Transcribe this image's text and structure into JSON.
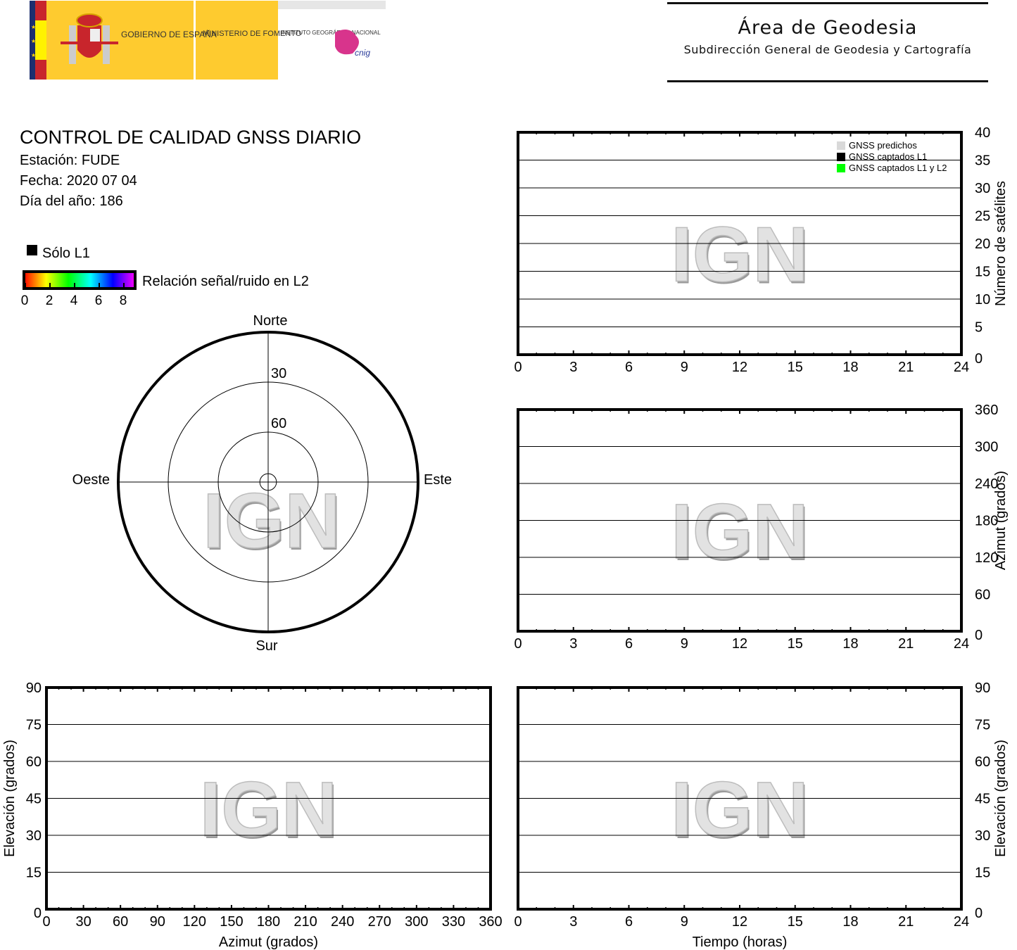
{
  "logos": {
    "gobierno": "GOBIERNO DE ESPAÑA",
    "ministerio": "MINISTERIO DE FOMENTO",
    "instituto": "INSTITUTO GEOGRÁFICO NACIONAL",
    "cnig": "cnig"
  },
  "header": {
    "title": "Área de Geodesia",
    "subtitle": "Subdirección General de Geodesia y Cartografía"
  },
  "report": {
    "title": "CONTROL DE CALIDAD GNSS DIARIO",
    "station": "Estación: FUDE",
    "date": "Fecha: 2020 07 04",
    "doy": "Día del año: 186"
  },
  "legend": {
    "l1_only": "Sólo L1",
    "l1_color": "#000000",
    "snr_label": "Relación señal/ruido en L2",
    "snr_ticks": [
      "0",
      "2",
      "4",
      "6",
      "8"
    ],
    "snr_colors": [
      "#ff0000",
      "#ffff00",
      "#00ff00",
      "#00ffff",
      "#0000ff",
      "#ff00ff"
    ]
  },
  "watermark": "IGN",
  "chart_data": [
    {
      "type": "scatter",
      "name": "skyplot",
      "polar": true,
      "directions": {
        "north": "Norte",
        "south": "Sur",
        "east": "Este",
        "west": "Oeste"
      },
      "ring_labels": [
        "30",
        "60"
      ],
      "rings": [
        0,
        30,
        60,
        85
      ],
      "points": []
    },
    {
      "type": "bar",
      "name": "satellites",
      "xlim": [
        0,
        24
      ],
      "xticks": [
        "0",
        "3",
        "6",
        "9",
        "12",
        "15",
        "18",
        "21",
        "24"
      ],
      "ylim": [
        0,
        40
      ],
      "yticks": [
        "0",
        "5",
        "10",
        "15",
        "20",
        "25",
        "30",
        "35",
        "40"
      ],
      "xlabel": "",
      "ylabel": "Número de satélites",
      "yaxis_side": "right",
      "grid": true,
      "legend_position": "top-right",
      "series": [
        {
          "name": "GNSS predichos",
          "color": "#d9d9d9",
          "values": []
        },
        {
          "name": "GNSS captados L1",
          "color": "#000000",
          "values": []
        },
        {
          "name": "GNSS captados L1 y L2",
          "color": "#00ff00",
          "values": []
        }
      ]
    },
    {
      "type": "scatter",
      "name": "azimuth-time",
      "xlim": [
        0,
        24
      ],
      "xticks": [
        "0",
        "3",
        "6",
        "9",
        "12",
        "15",
        "18",
        "21",
        "24"
      ],
      "ylim": [
        0,
        360
      ],
      "yticks": [
        "0",
        "60",
        "120",
        "180",
        "240",
        "300",
        "360"
      ],
      "xlabel": "",
      "ylabel": "Azimut (grados)",
      "yaxis_side": "right",
      "grid": true,
      "series": []
    },
    {
      "type": "scatter",
      "name": "elevation-azimuth",
      "xlim": [
        0,
        360
      ],
      "xticks": [
        "0",
        "30",
        "60",
        "90",
        "120",
        "150",
        "180",
        "210",
        "240",
        "270",
        "300",
        "330",
        "360"
      ],
      "ylim": [
        0,
        90
      ],
      "yticks": [
        "0",
        "15",
        "30",
        "45",
        "60",
        "75",
        "90"
      ],
      "xlabel": "Azimut (grados)",
      "ylabel": "Elevación (grados)",
      "yaxis_side": "left",
      "grid": true,
      "series": []
    },
    {
      "type": "scatter",
      "name": "elevation-time",
      "xlim": [
        0,
        24
      ],
      "xticks": [
        "0",
        "3",
        "6",
        "9",
        "12",
        "15",
        "18",
        "21",
        "24"
      ],
      "ylim": [
        0,
        90
      ],
      "yticks": [
        "0",
        "15",
        "30",
        "45",
        "60",
        "75",
        "90"
      ],
      "xlabel": "Tiempo (horas)",
      "ylabel": "Elevación (grados)",
      "yaxis_side": "right",
      "grid": true,
      "series": []
    }
  ]
}
